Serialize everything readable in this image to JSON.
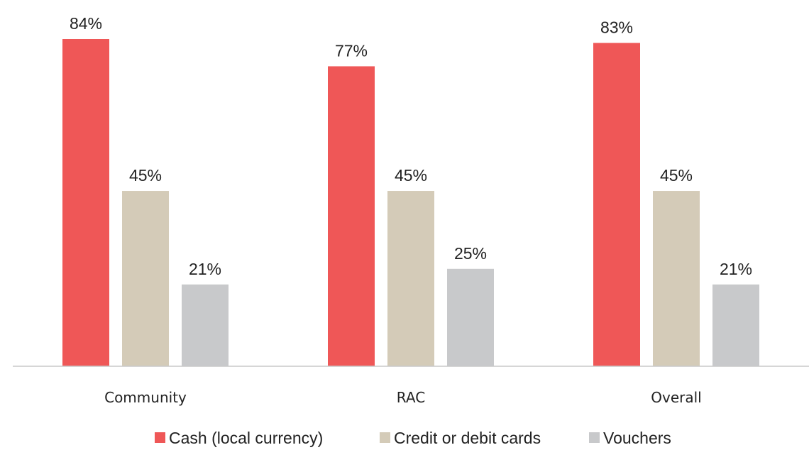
{
  "chart_data": {
    "type": "bar",
    "categories": [
      "Community",
      "RAC",
      "Overall"
    ],
    "series": [
      {
        "name": "Cash (local currency)",
        "color": "#ef5757",
        "values": [
          84,
          77,
          83
        ],
        "value_labels": [
          "84%",
          "77%",
          "83%"
        ]
      },
      {
        "name": "Credit or debit cards",
        "color": "#d4cbb8",
        "values": [
          45,
          45,
          45
        ],
        "value_labels": [
          "45%",
          "45%",
          "45%"
        ]
      },
      {
        "name": "Vouchers",
        "color": "#c8c9cb",
        "values": [
          21,
          25,
          21
        ],
        "value_labels": [
          "21%",
          "25%",
          "21%"
        ]
      }
    ],
    "legend": "bottom"
  }
}
